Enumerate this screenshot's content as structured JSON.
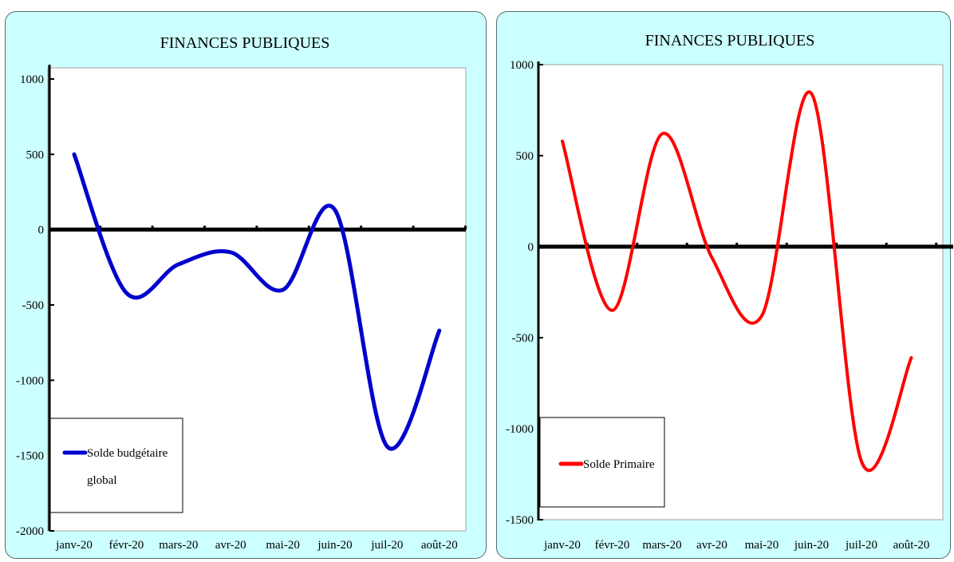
{
  "chart_data": [
    {
      "type": "line",
      "title": "FINANCES PUBLIQUES",
      "categories": [
        "janv-20",
        "févr-20",
        "mars-20",
        "avr-20",
        "mai-20",
        "juin-20",
        "juil-20",
        "août-20"
      ],
      "series": [
        {
          "name": "Solde budgétaire global",
          "color": "#0000cc",
          "values": [
            500,
            -420,
            -230,
            -150,
            -400,
            130,
            -1440,
            -670
          ]
        }
      ],
      "ylim": [
        -2000,
        1000
      ],
      "yticks": [
        "1000",
        "500",
        "0",
        "-500",
        "-1000",
        "-1500",
        "-2000"
      ],
      "grid": false,
      "legend": "bottom-left"
    },
    {
      "type": "line",
      "title": "FINANCES PUBLIQUES",
      "categories": [
        "janv-20",
        "févr-20",
        "mars-20",
        "avr-20",
        "mai-20",
        "juin-20",
        "juil-20",
        "août-20"
      ],
      "series": [
        {
          "name": "Solde Primaire",
          "color": "#ff0000",
          "values": [
            580,
            -350,
            620,
            -60,
            -380,
            840,
            -1180,
            -610
          ]
        }
      ],
      "ylim": [
        -1500,
        1000
      ],
      "yticks": [
        "1000",
        "500",
        "0",
        "-500",
        "-1000",
        "-1500"
      ],
      "grid": false,
      "legend": "bottom-left"
    }
  ]
}
